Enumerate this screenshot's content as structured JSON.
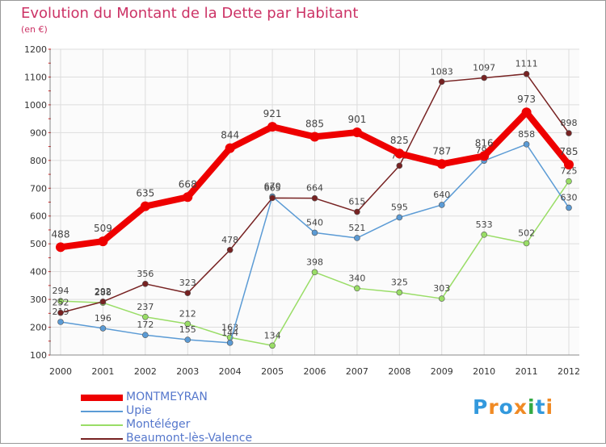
{
  "header": {
    "title": "Evolution du Montant de la Dette par Habitant",
    "unit": "(en €)"
  },
  "logo": {
    "letters": [
      "P",
      "r",
      "o",
      "x",
      "i",
      "t",
      "i"
    ],
    "colors": [
      "#3399dd",
      "#f08a24",
      "#3399dd",
      "#f08a24",
      "#33aa44",
      "#3399dd",
      "#f08a24"
    ]
  },
  "chart_data": {
    "type": "line",
    "title": "Evolution du Montant de la Dette par Habitant",
    "subtitle": "(en €)",
    "xlabel": "",
    "ylabel": "",
    "x": [
      "2000",
      "2001",
      "2002",
      "2003",
      "2004",
      "2005",
      "2006",
      "2007",
      "2008",
      "2009",
      "2010",
      "2011",
      "2012"
    ],
    "ylim": [
      100,
      1200
    ],
    "yticks": [
      "100",
      "200",
      "300",
      "400",
      "500",
      "600",
      "700",
      "800",
      "900",
      "1000",
      "1100",
      "1200"
    ],
    "grid": true,
    "legend_position": "bottom-left",
    "series": [
      {
        "name": "MONTMEYRAN",
        "color": "#ee0000",
        "values": [
          488,
          509,
          635,
          668,
          844,
          921,
          885,
          901,
          825,
          787,
          816,
          973,
          785
        ]
      },
      {
        "name": "Upie",
        "color": "#5b9bd5",
        "values": [
          219,
          196,
          172,
          155,
          144,
          670,
          540,
          521,
          595,
          640,
          799,
          858,
          630
        ]
      },
      {
        "name": "Montéléger",
        "color": "#99dd66",
        "values": [
          294,
          288,
          237,
          212,
          163,
          134,
          398,
          340,
          325,
          303,
          533,
          502,
          725
        ]
      },
      {
        "name": "Beaumont-lès-Valence",
        "color": "#772222",
        "values": [
          252,
          292,
          356,
          323,
          478,
          665,
          664,
          615,
          781,
          1083,
          1097,
          1111,
          898
        ]
      }
    ]
  }
}
